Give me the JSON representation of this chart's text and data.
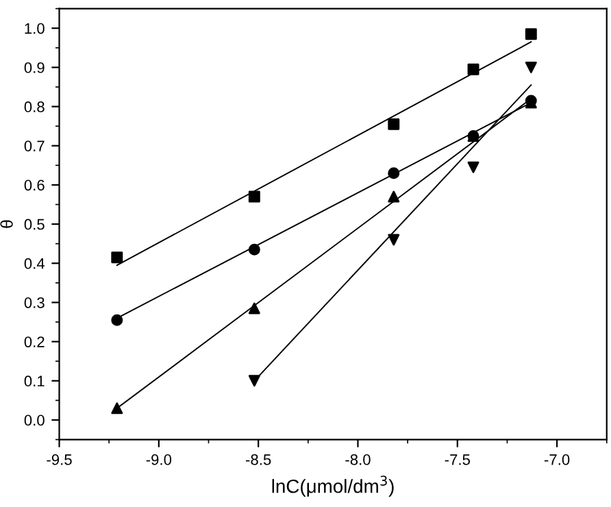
{
  "chart_data": {
    "type": "scatter",
    "xlabel": "lnC(μmol/dm$^{3}$)",
    "ylabel": "θ",
    "xlim": [
      -9.5,
      -6.75
    ],
    "ylim": [
      -0.05,
      1.05
    ],
    "xticks": [
      -9.5,
      {
        "value": -9,
        "label": "-9.0"
      },
      -8.5,
      {
        "value": -8,
        "label": "-8.0"
      },
      -7.5,
      {
        "value": -7,
        "label": "-7.0"
      }
    ],
    "yticks": [
      {
        "value": 0,
        "label": "0.0"
      },
      0.1,
      0.2,
      0.3,
      0.4,
      0.5,
      0.6,
      0.7,
      0.8,
      0.9,
      {
        "value": 1,
        "label": "1.0"
      }
    ],
    "grid": false,
    "series": [
      {
        "marker": "square",
        "color": "#000000",
        "x": [
          -9.21,
          -8.52,
          -7.82,
          -7.42,
          -7.13
        ],
        "values": [
          0.415,
          0.57,
          0.755,
          0.895,
          0.985
        ]
      },
      {
        "marker": "circle",
        "color": "#000000",
        "x": [
          -9.21,
          -8.52,
          -7.82,
          -7.42,
          -7.13
        ],
        "values": [
          0.255,
          0.435,
          0.63,
          0.725,
          0.815
        ]
      },
      {
        "marker": "triangle",
        "color": "#000000",
        "x": [
          -9.21,
          -8.52,
          -7.82,
          -7.42,
          -7.13
        ],
        "values": [
          0.03,
          0.285,
          0.57,
          0.725,
          0.81
        ]
      },
      {
        "marker": "triangle-down",
        "color": "#000000",
        "x": [
          -8.52,
          -7.82,
          -7.42,
          -7.13
        ],
        "values": [
          0.1,
          0.46,
          0.645,
          0.9
        ]
      },
      {
        "type": "line",
        "marker": "none",
        "line_style": "solid",
        "color": "#000000",
        "x": [
          -9.21,
          -7.13
        ],
        "values": [
          0.395,
          0.965
        ]
      },
      {
        "type": "line",
        "marker": "none",
        "line_style": "solid",
        "color": "#000000",
        "x": [
          -9.21,
          -7.13
        ],
        "values": [
          0.26,
          0.81
        ]
      },
      {
        "type": "line",
        "marker": "none",
        "line_style": "solid",
        "color": "#000000",
        "x": [
          -9.21,
          -7.13
        ],
        "values": [
          0.03,
          0.82
        ]
      },
      {
        "type": "line",
        "marker": "none",
        "line_style": "solid",
        "color": "#000000",
        "x": [
          -8.52,
          -7.13
        ],
        "values": [
          0.1,
          0.855
        ]
      }
    ]
  }
}
